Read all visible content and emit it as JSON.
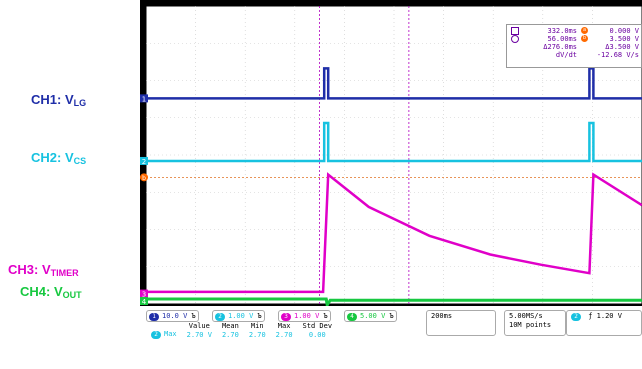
{
  "labels": {
    "ch1": {
      "prefix": "CH1: V",
      "sub": "LG"
    },
    "ch2": {
      "prefix": "CH2: V",
      "sub": "CS"
    },
    "ch3": {
      "prefix": "CH3: V",
      "sub": "TIMER"
    },
    "ch4": {
      "prefix": "CH4: V",
      "sub": "OUT"
    }
  },
  "cursor_readout": {
    "a_time": "332.0ms",
    "b_time": "56.00ms",
    "delta_time": "Δ276.0ms",
    "ratio_label": "dV/dt",
    "a_volt": "0.000 V",
    "b_volt": "3.500 V",
    "delta_volt": "Δ3.500 V",
    "slope": "-12.68 V/s",
    "icon_a": "a",
    "icon_b": "b"
  },
  "channels": [
    {
      "num": "1",
      "scale": "10.0 V",
      "color": "#1f2ea8"
    },
    {
      "num": "2",
      "scale": "1.00 V",
      "color": "#17c2e0"
    },
    {
      "num": "3",
      "scale": "1.00 V",
      "color": "#e000c8"
    },
    {
      "num": "4",
      "scale": "5.00 V",
      "color": "#17c840"
    }
  ],
  "channel_bw_symbol": "Ъ",
  "timebase": "200ms",
  "sample_rate": "5.00MS/s",
  "record_length": "10M points",
  "trigger": {
    "channel": "2",
    "slope": "ƒ",
    "level": "1.20 V"
  },
  "measurement": {
    "headers": [
      "Value",
      "Mean",
      "Min",
      "Max",
      "Std Dev"
    ],
    "row_label": "Max",
    "row_channel": "2",
    "values": [
      "2.70 V",
      "2.70",
      "2.70",
      "2.70",
      "0.00"
    ]
  },
  "marker_labels": {
    "ch1": "1",
    "ch2": "2",
    "ch3": "3",
    "ch4": "4",
    "cursor_b": "b"
  },
  "chart_data": {
    "type": "line",
    "title": "",
    "xlabel": "",
    "ylabel": "",
    "time_per_division": "200ms",
    "series": [
      {
        "name": "CH1: VLG",
        "color": "#1f2ea8",
        "description_points": [
          [
            0,
            0
          ],
          [
            1.76,
            0
          ],
          [
            1.76,
            1.5
          ],
          [
            1.8,
            1.5
          ],
          [
            1.8,
            0
          ],
          [
            4.38,
            0
          ],
          [
            4.38,
            1.5
          ],
          [
            4.42,
            1.5
          ],
          [
            4.42,
            0
          ],
          [
            4.9,
            0
          ]
        ]
      },
      {
        "name": "CH2: VCS",
        "color": "#17c2e0",
        "description_points": [
          [
            0,
            0
          ],
          [
            1.76,
            0
          ],
          [
            1.76,
            1.5
          ],
          [
            1.8,
            1.5
          ],
          [
            1.8,
            0
          ],
          [
            4.38,
            0
          ],
          [
            4.38,
            1.5
          ],
          [
            4.42,
            1.5
          ],
          [
            4.42,
            0
          ],
          [
            4.9,
            0
          ]
        ]
      },
      {
        "name": "CH3: VTIMER",
        "color": "#e000c8",
        "description_points": [
          [
            0,
            0.05
          ],
          [
            1.75,
            0.05
          ],
          [
            1.8,
            3.5
          ],
          [
            2.2,
            2.55
          ],
          [
            2.8,
            1.7
          ],
          [
            3.4,
            1.15
          ],
          [
            3.9,
            0.85
          ],
          [
            4.38,
            0.6
          ],
          [
            4.42,
            3.5
          ],
          [
            4.9,
            2.6
          ]
        ]
      },
      {
        "name": "CH4: VOUT",
        "color": "#17c840",
        "description_points": [
          [
            0,
            0.05
          ],
          [
            1.78,
            0.05
          ],
          [
            1.79,
            -0.1
          ],
          [
            1.82,
            0.02
          ],
          [
            4.9,
            0.02
          ]
        ]
      }
    ]
  }
}
